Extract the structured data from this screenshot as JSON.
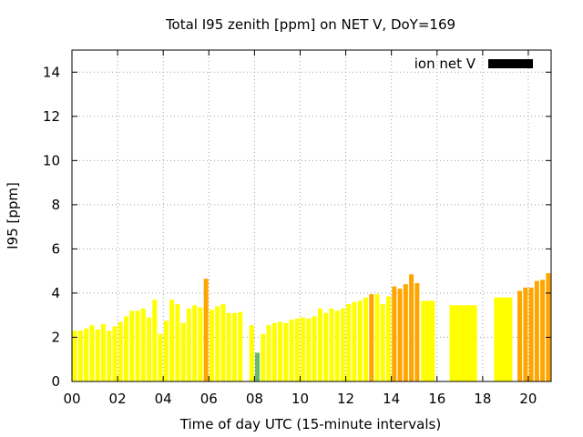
{
  "chart_data": {
    "type": "bar",
    "title": "Total I95 zenith [ppm] on NET V, DoY=169",
    "xlabel": "Time of day UTC (15-minute intervals)",
    "ylabel": "I95 [ppm]",
    "xlim": [
      0,
      21
    ],
    "ylim": [
      0,
      15
    ],
    "xticks": [
      "00",
      "02",
      "04",
      "06",
      "08",
      "10",
      "12",
      "14",
      "16",
      "18",
      "20"
    ],
    "yticks": [
      "0",
      "2",
      "4",
      "6",
      "8",
      "10",
      "12",
      "14"
    ],
    "grid": true,
    "legend": {
      "label": "ion net V",
      "color": "#000000",
      "placement": "top-right"
    },
    "colors": {
      "yellow": "#ffff00",
      "orange": "#ffa500",
      "green": "#66bb66"
    },
    "series": [
      {
        "values": [
          {
            "x": 0.125,
            "w": 0.2,
            "y": 2.3,
            "c": "yellow"
          },
          {
            "x": 0.375,
            "w": 0.2,
            "y": 2.3,
            "c": "yellow"
          },
          {
            "x": 0.625,
            "w": 0.2,
            "y": 2.4,
            "c": "yellow"
          },
          {
            "x": 0.875,
            "w": 0.2,
            "y": 2.55,
            "c": "yellow"
          },
          {
            "x": 1.125,
            "w": 0.2,
            "y": 2.35,
            "c": "yellow"
          },
          {
            "x": 1.375,
            "w": 0.2,
            "y": 2.6,
            "c": "yellow"
          },
          {
            "x": 1.625,
            "w": 0.2,
            "y": 2.3,
            "c": "yellow"
          },
          {
            "x": 1.875,
            "w": 0.2,
            "y": 2.5,
            "c": "yellow"
          },
          {
            "x": 2.125,
            "w": 0.2,
            "y": 2.7,
            "c": "yellow"
          },
          {
            "x": 2.375,
            "w": 0.2,
            "y": 2.95,
            "c": "yellow"
          },
          {
            "x": 2.625,
            "w": 0.2,
            "y": 3.2,
            "c": "yellow"
          },
          {
            "x": 2.875,
            "w": 0.2,
            "y": 3.2,
            "c": "yellow"
          },
          {
            "x": 3.125,
            "w": 0.2,
            "y": 3.3,
            "c": "yellow"
          },
          {
            "x": 3.375,
            "w": 0.2,
            "y": 2.9,
            "c": "yellow"
          },
          {
            "x": 3.625,
            "w": 0.2,
            "y": 3.7,
            "c": "yellow"
          },
          {
            "x": 3.875,
            "w": 0.2,
            "y": 2.15,
            "c": "yellow"
          },
          {
            "x": 4.125,
            "w": 0.2,
            "y": 2.75,
            "c": "yellow"
          },
          {
            "x": 4.375,
            "w": 0.2,
            "y": 3.7,
            "c": "yellow"
          },
          {
            "x": 4.625,
            "w": 0.2,
            "y": 3.5,
            "c": "yellow"
          },
          {
            "x": 4.875,
            "w": 0.2,
            "y": 2.65,
            "c": "yellow"
          },
          {
            "x": 5.125,
            "w": 0.2,
            "y": 3.3,
            "c": "yellow"
          },
          {
            "x": 5.375,
            "w": 0.2,
            "y": 3.45,
            "c": "yellow"
          },
          {
            "x": 5.625,
            "w": 0.2,
            "y": 3.35,
            "c": "yellow"
          },
          {
            "x": 5.875,
            "w": 0.2,
            "y": 4.65,
            "c": "orange"
          },
          {
            "x": 6.125,
            "w": 0.2,
            "y": 3.25,
            "c": "yellow"
          },
          {
            "x": 6.375,
            "w": 0.2,
            "y": 3.4,
            "c": "yellow"
          },
          {
            "x": 6.625,
            "w": 0.2,
            "y": 3.5,
            "c": "yellow"
          },
          {
            "x": 6.875,
            "w": 0.2,
            "y": 3.1,
            "c": "yellow"
          },
          {
            "x": 7.125,
            "w": 0.2,
            "y": 3.1,
            "c": "yellow"
          },
          {
            "x": 7.375,
            "w": 0.2,
            "y": 3.15,
            "c": "yellow"
          },
          {
            "x": 7.875,
            "w": 0.2,
            "y": 2.55,
            "c": "yellow"
          },
          {
            "x": 8.125,
            "w": 0.2,
            "y": 1.3,
            "c": "green"
          },
          {
            "x": 8.375,
            "w": 0.2,
            "y": 2.15,
            "c": "yellow"
          },
          {
            "x": 8.625,
            "w": 0.2,
            "y": 2.55,
            "c": "yellow"
          },
          {
            "x": 8.875,
            "w": 0.2,
            "y": 2.65,
            "c": "yellow"
          },
          {
            "x": 9.125,
            "w": 0.2,
            "y": 2.7,
            "c": "yellow"
          },
          {
            "x": 9.375,
            "w": 0.2,
            "y": 2.65,
            "c": "yellow"
          },
          {
            "x": 9.625,
            "w": 0.2,
            "y": 2.8,
            "c": "yellow"
          },
          {
            "x": 9.875,
            "w": 0.2,
            "y": 2.85,
            "c": "yellow"
          },
          {
            "x": 10.125,
            "w": 0.2,
            "y": 2.9,
            "c": "yellow"
          },
          {
            "x": 10.375,
            "w": 0.2,
            "y": 2.85,
            "c": "yellow"
          },
          {
            "x": 10.625,
            "w": 0.2,
            "y": 2.95,
            "c": "yellow"
          },
          {
            "x": 10.875,
            "w": 0.2,
            "y": 3.3,
            "c": "yellow"
          },
          {
            "x": 11.125,
            "w": 0.2,
            "y": 3.1,
            "c": "yellow"
          },
          {
            "x": 11.375,
            "w": 0.2,
            "y": 3.3,
            "c": "yellow"
          },
          {
            "x": 11.625,
            "w": 0.2,
            "y": 3.2,
            "c": "yellow"
          },
          {
            "x": 11.875,
            "w": 0.2,
            "y": 3.3,
            "c": "yellow"
          },
          {
            "x": 12.125,
            "w": 0.2,
            "y": 3.5,
            "c": "yellow"
          },
          {
            "x": 12.375,
            "w": 0.2,
            "y": 3.6,
            "c": "yellow"
          },
          {
            "x": 12.625,
            "w": 0.2,
            "y": 3.65,
            "c": "yellow"
          },
          {
            "x": 12.875,
            "w": 0.2,
            "y": 3.8,
            "c": "yellow"
          },
          {
            "x": 13.125,
            "w": 0.2,
            "y": 3.95,
            "c": "orange"
          },
          {
            "x": 13.375,
            "w": 0.2,
            "y": 3.95,
            "c": "yellow"
          },
          {
            "x": 13.625,
            "w": 0.2,
            "y": 3.5,
            "c": "yellow"
          },
          {
            "x": 13.875,
            "w": 0.2,
            "y": 3.85,
            "c": "yellow"
          },
          {
            "x": 14.125,
            "w": 0.2,
            "y": 4.3,
            "c": "orange"
          },
          {
            "x": 14.375,
            "w": 0.2,
            "y": 4.2,
            "c": "orange"
          },
          {
            "x": 14.625,
            "w": 0.2,
            "y": 4.4,
            "c": "orange"
          },
          {
            "x": 14.875,
            "w": 0.2,
            "y": 4.85,
            "c": "orange"
          },
          {
            "x": 15.125,
            "w": 0.2,
            "y": 4.45,
            "c": "orange"
          },
          {
            "x": 15.6,
            "w": 0.6,
            "y": 3.65,
            "c": "yellow"
          },
          {
            "x": 17.15,
            "w": 1.2,
            "y": 3.45,
            "c": "yellow"
          },
          {
            "x": 18.9,
            "w": 0.8,
            "y": 3.8,
            "c": "yellow"
          },
          {
            "x": 19.625,
            "w": 0.2,
            "y": 4.1,
            "c": "orange"
          },
          {
            "x": 19.875,
            "w": 0.2,
            "y": 4.25,
            "c": "orange"
          },
          {
            "x": 20.125,
            "w": 0.2,
            "y": 4.25,
            "c": "orange"
          },
          {
            "x": 20.375,
            "w": 0.2,
            "y": 4.55,
            "c": "orange"
          },
          {
            "x": 20.625,
            "w": 0.2,
            "y": 4.6,
            "c": "orange"
          },
          {
            "x": 20.875,
            "w": 0.2,
            "y": 4.9,
            "c": "orange"
          }
        ]
      }
    ]
  }
}
